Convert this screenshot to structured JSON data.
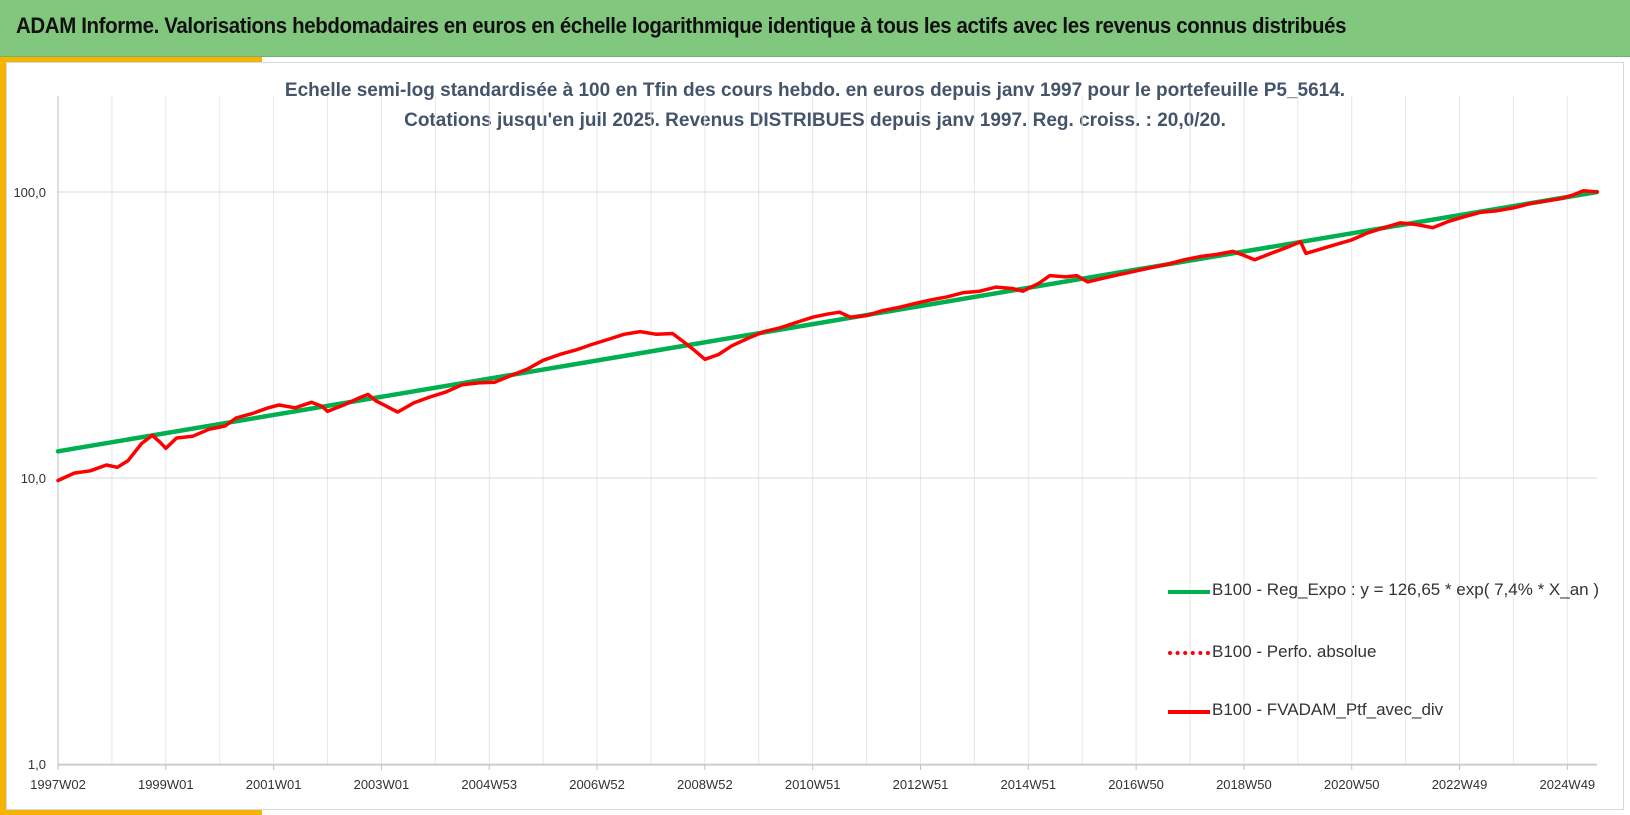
{
  "header": {
    "title": "ADAM Informe. Valorisations hebdomadaires en euros en échelle logarithmique identique à tous les actifs avec les revenus connus distribués"
  },
  "colors": {
    "header_bg": "#82c77e",
    "accent": "#f5b400",
    "regression": "#00b050",
    "portfolio": "#ff0000",
    "subtitle_text": "#44546a"
  },
  "chart_data": {
    "type": "line",
    "title_line1": "Echelle semi-log standardisée à 100 en Tfin des cours hebdo. en euros depuis janv 1997 pour le portefeuille P5_5614.",
    "title_line2": "Cotations jusqu'en juil 2025. Revenus DISTRIBUES depuis janv 1997. Reg. croiss. : 20,0/20.",
    "y_scale": "log",
    "ylim": [
      1,
      200
    ],
    "y_ticks": [
      {
        "value": 1,
        "label": "1,0"
      },
      {
        "value": 10,
        "label": "10,0"
      },
      {
        "value": 100,
        "label": "100,0"
      }
    ],
    "x_range_years": [
      1997.0,
      2025.55
    ],
    "x_ticks": [
      {
        "label": "1997W02",
        "year": 1997.0
      },
      {
        "label": "1999W01",
        "year": 1999.0
      },
      {
        "label": "2001W01",
        "year": 2001.0
      },
      {
        "label": "2003W01",
        "year": 2003.0
      },
      {
        "label": "2004W53",
        "year": 2005.0
      },
      {
        "label": "2006W52",
        "year": 2007.0
      },
      {
        "label": "2008W52",
        "year": 2009.0
      },
      {
        "label": "2010W51",
        "year": 2011.0
      },
      {
        "label": "2012W51",
        "year": 2013.0
      },
      {
        "label": "2014W51",
        "year": 2015.0
      },
      {
        "label": "2016W50",
        "year": 2017.0
      },
      {
        "label": "2018W50",
        "year": 2019.0
      },
      {
        "label": "2020W50",
        "year": 2021.0
      },
      {
        "label": "2022W49",
        "year": 2023.0
      },
      {
        "label": "2024W49",
        "year": 2025.0
      }
    ],
    "grid": true,
    "legend_position": "bottom-right",
    "series": [
      {
        "name": "B100 - Reg_Expo : y = 126,65 * exp( 7,4% *  X_an )",
        "style": "solid",
        "color": "#00b050",
        "points": [
          [
            1997.0,
            12.4
          ],
          [
            2025.55,
            100.0
          ]
        ]
      },
      {
        "name": "B100 - Perfo. absolue",
        "style": "dotted",
        "color": "#ff0000",
        "points": []
      },
      {
        "name": "B100 - FVADAM_Ptf_avec_div",
        "style": "solid",
        "color": "#ff0000",
        "points": [
          [
            1997.0,
            9.8
          ],
          [
            1997.3,
            10.4
          ],
          [
            1997.6,
            10.6
          ],
          [
            1997.9,
            11.1
          ],
          [
            1998.1,
            10.9
          ],
          [
            1998.3,
            11.5
          ],
          [
            1998.55,
            13.2
          ],
          [
            1998.75,
            14.1
          ],
          [
            1998.9,
            13.3
          ],
          [
            1999.0,
            12.7
          ],
          [
            1999.2,
            13.8
          ],
          [
            1999.5,
            14.0
          ],
          [
            1999.8,
            14.8
          ],
          [
            2000.1,
            15.2
          ],
          [
            2000.3,
            16.2
          ],
          [
            2000.6,
            16.8
          ],
          [
            2000.9,
            17.6
          ],
          [
            2001.1,
            18.0
          ],
          [
            2001.4,
            17.6
          ],
          [
            2001.7,
            18.4
          ],
          [
            2001.9,
            17.8
          ],
          [
            2002.0,
            17.1
          ],
          [
            2002.3,
            18.0
          ],
          [
            2002.6,
            19.1
          ],
          [
            2002.75,
            19.6
          ],
          [
            2002.9,
            18.6
          ],
          [
            2003.1,
            17.8
          ],
          [
            2003.3,
            17.0
          ],
          [
            2003.6,
            18.3
          ],
          [
            2003.9,
            19.2
          ],
          [
            2004.2,
            20.0
          ],
          [
            2004.5,
            21.2
          ],
          [
            2004.8,
            21.5
          ],
          [
            2005.1,
            21.6
          ],
          [
            2005.4,
            22.8
          ],
          [
            2005.7,
            24.0
          ],
          [
            2006.0,
            25.8
          ],
          [
            2006.3,
            27.0
          ],
          [
            2006.6,
            28.0
          ],
          [
            2006.9,
            29.3
          ],
          [
            2007.2,
            30.5
          ],
          [
            2007.5,
            31.8
          ],
          [
            2007.8,
            32.5
          ],
          [
            2008.1,
            31.8
          ],
          [
            2008.4,
            32.0
          ],
          [
            2008.65,
            29.5
          ],
          [
            2008.8,
            28.0
          ],
          [
            2009.0,
            26.0
          ],
          [
            2009.25,
            27.0
          ],
          [
            2009.5,
            29.0
          ],
          [
            2009.8,
            30.8
          ],
          [
            2010.1,
            32.5
          ],
          [
            2010.4,
            33.5
          ],
          [
            2010.7,
            35.0
          ],
          [
            2011.0,
            36.5
          ],
          [
            2011.3,
            37.5
          ],
          [
            2011.5,
            38.0
          ],
          [
            2011.7,
            36.5
          ],
          [
            2012.0,
            37.0
          ],
          [
            2012.3,
            38.5
          ],
          [
            2012.6,
            39.5
          ],
          [
            2012.9,
            40.8
          ],
          [
            2013.2,
            42.0
          ],
          [
            2013.5,
            43.0
          ],
          [
            2013.8,
            44.5
          ],
          [
            2014.1,
            45.0
          ],
          [
            2014.4,
            46.5
          ],
          [
            2014.7,
            46.0
          ],
          [
            2014.9,
            45.0
          ],
          [
            2015.2,
            48.0
          ],
          [
            2015.4,
            51.0
          ],
          [
            2015.7,
            50.5
          ],
          [
            2015.9,
            51.0
          ],
          [
            2016.1,
            48.5
          ],
          [
            2016.4,
            50.0
          ],
          [
            2016.7,
            51.5
          ],
          [
            2017.0,
            53.0
          ],
          [
            2017.3,
            54.5
          ],
          [
            2017.6,
            56.0
          ],
          [
            2017.9,
            58.0
          ],
          [
            2018.2,
            59.5
          ],
          [
            2018.5,
            60.5
          ],
          [
            2018.8,
            62.0
          ],
          [
            2019.0,
            60.0
          ],
          [
            2019.2,
            58.0
          ],
          [
            2019.5,
            61.0
          ],
          [
            2019.8,
            64.0
          ],
          [
            2020.05,
            67.0
          ],
          [
            2020.15,
            61.0
          ],
          [
            2020.4,
            63.0
          ],
          [
            2020.7,
            65.5
          ],
          [
            2021.0,
            68.0
          ],
          [
            2021.3,
            72.0
          ],
          [
            2021.6,
            75.0
          ],
          [
            2021.9,
            78.0
          ],
          [
            2022.2,
            77.0
          ],
          [
            2022.5,
            75.0
          ],
          [
            2022.8,
            79.0
          ],
          [
            2023.1,
            82.0
          ],
          [
            2023.4,
            85.0
          ],
          [
            2023.7,
            86.0
          ],
          [
            2024.0,
            88.0
          ],
          [
            2024.3,
            91.0
          ],
          [
            2024.6,
            93.0
          ],
          [
            2024.9,
            95.0
          ],
          [
            2025.1,
            97.5
          ],
          [
            2025.3,
            101.0
          ],
          [
            2025.55,
            100.0
          ]
        ]
      }
    ]
  }
}
